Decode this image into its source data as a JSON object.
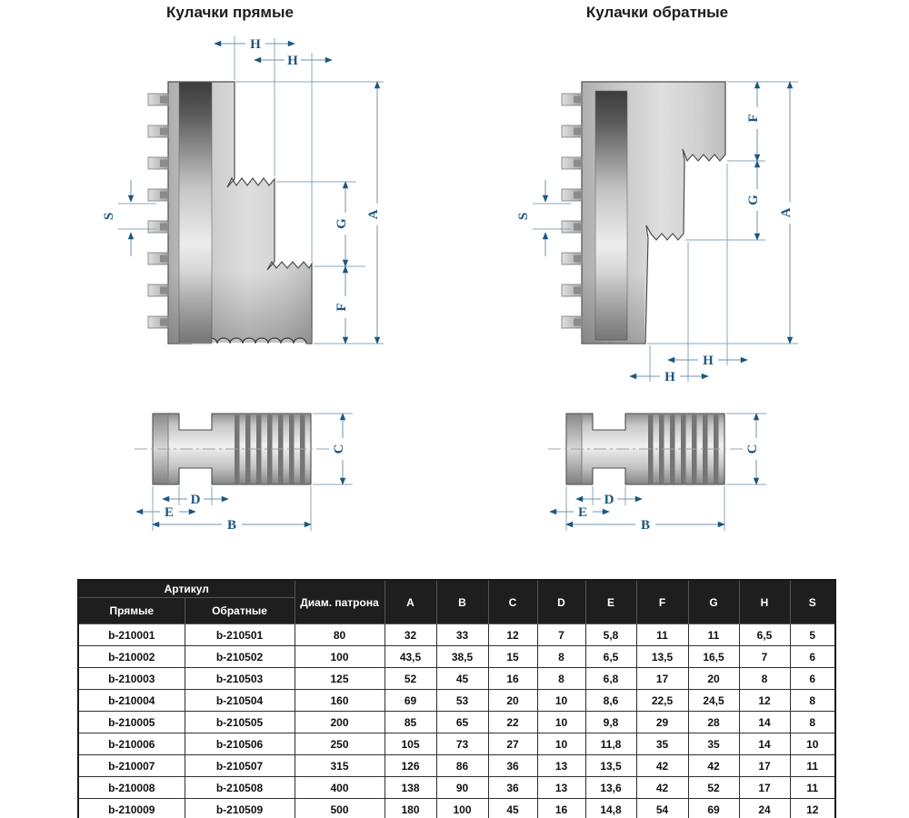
{
  "page": {
    "background": "#ffffff"
  },
  "colors": {
    "dim_label": "#1b567f",
    "dim_line": "#8aa7bd",
    "drawing_outline": "#4d4d4d",
    "table_header_bg": "#1e1e1e",
    "table_header_text": "#ffffff"
  },
  "diagrams": {
    "straight": {
      "title": "Кулачки прямые"
    },
    "reverse": {
      "title": "Кулачки обратные"
    }
  },
  "dim_labels": {
    "A": "A",
    "B": "B",
    "C": "C",
    "D": "D",
    "E": "E",
    "F": "F",
    "G": "G",
    "H": "H",
    "S": "S"
  },
  "table": {
    "header": {
      "group_article": "Артикул",
      "col_straight": "Прямые",
      "col_reverse": "Обратные",
      "col_diameter": "Диам. патрона",
      "dims": [
        "A",
        "B",
        "C",
        "D",
        "E",
        "F",
        "G",
        "H",
        "S"
      ]
    },
    "rows": [
      [
        "b-210001",
        "b-210501",
        "80",
        "32",
        "33",
        "12",
        "7",
        "5,8",
        "11",
        "11",
        "6,5",
        "5"
      ],
      [
        "b-210002",
        "b-210502",
        "100",
        "43,5",
        "38,5",
        "15",
        "8",
        "6,5",
        "13,5",
        "16,5",
        "7",
        "6"
      ],
      [
        "b-210003",
        "b-210503",
        "125",
        "52",
        "45",
        "16",
        "8",
        "6,8",
        "17",
        "20",
        "8",
        "6"
      ],
      [
        "b-210004",
        "b-210504",
        "160",
        "69",
        "53",
        "20",
        "10",
        "8,6",
        "22,5",
        "24,5",
        "12",
        "8"
      ],
      [
        "b-210005",
        "b-210505",
        "200",
        "85",
        "65",
        "22",
        "10",
        "9,8",
        "29",
        "28",
        "14",
        "8"
      ],
      [
        "b-210006",
        "b-210506",
        "250",
        "105",
        "73",
        "27",
        "10",
        "11,8",
        "35",
        "35",
        "14",
        "10"
      ],
      [
        "b-210007",
        "b-210507",
        "315",
        "126",
        "86",
        "36",
        "13",
        "13,5",
        "42",
        "42",
        "17",
        "11"
      ],
      [
        "b-210008",
        "b-210508",
        "400",
        "138",
        "90",
        "36",
        "13",
        "13,6",
        "42",
        "52",
        "17",
        "11"
      ],
      [
        "b-210009",
        "b-210509",
        "500",
        "180",
        "100",
        "45",
        "16",
        "14,8",
        "54",
        "69",
        "24",
        "12"
      ]
    ]
  }
}
